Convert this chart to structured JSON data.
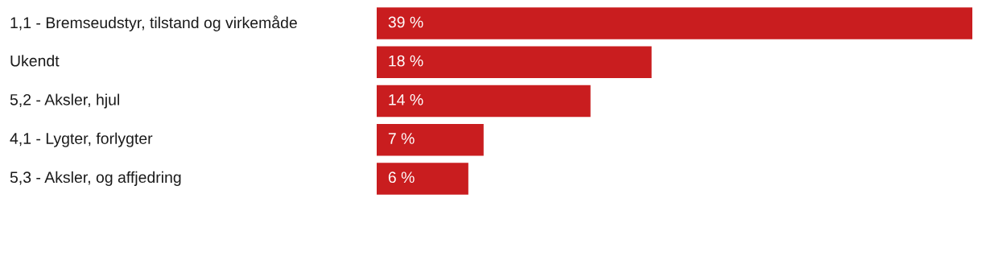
{
  "chart_data": {
    "type": "bar",
    "orientation": "horizontal",
    "categories": [
      "1,1 - Bremseudstyr, tilstand og virkemåde",
      "Ukendt",
      "5,2 - Aksler, hjul",
      "4,1 - Lygter, forlygter",
      "5,3 - Aksler, og affjedring"
    ],
    "values": [
      39,
      18,
      14,
      7,
      6
    ],
    "value_labels": [
      "39 %",
      "18 %",
      "14 %",
      "7 %",
      "6 %"
    ],
    "color": "#c91d1f"
  }
}
